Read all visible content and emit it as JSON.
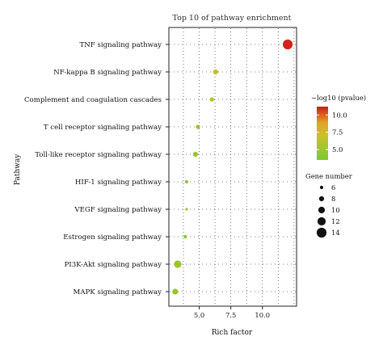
{
  "chart_data": {
    "type": "scatter",
    "title": "Top 10 of pathway enrichment",
    "xlabel": "Rich factor",
    "ylabel": "Pathway",
    "xlim": [
      2.6,
      12.7
    ],
    "xticks": [
      5.0,
      7.5,
      10.0
    ],
    "xtick_labels": [
      "5.0",
      "7.5",
      "10.0"
    ],
    "grid": true,
    "categories": [
      "TNF signaling pathway",
      "NF-kappa B signaling pathway",
      "Complement and coagulation cascades",
      "T cell receptor signaling pathway",
      "Toll-like receptor signaling pathway",
      "HIF-1 signaling pathway",
      "VEGF signaling pathway",
      "Estrogen signaling pathway",
      "PI3K-Akt signaling pathway",
      "MAPK signaling pathway"
    ],
    "points": [
      {
        "pathway": "TNF signaling pathway",
        "rich_factor": 12.0,
        "neg_log10_pvalue": 11.0,
        "gene_number": 14
      },
      {
        "pathway": "NF-kappa B signaling pathway",
        "rich_factor": 6.3,
        "neg_log10_pvalue": 6.3,
        "gene_number": 8
      },
      {
        "pathway": "Complement and coagulation cascades",
        "rich_factor": 6.0,
        "neg_log10_pvalue": 5.8,
        "gene_number": 7
      },
      {
        "pathway": "T cell receptor signaling pathway",
        "rich_factor": 4.9,
        "neg_log10_pvalue": 5.0,
        "gene_number": 7
      },
      {
        "pathway": "Toll-like receptor signaling pathway",
        "rich_factor": 4.7,
        "neg_log10_pvalue": 4.8,
        "gene_number": 8
      },
      {
        "pathway": "HIF-1 signaling pathway",
        "rich_factor": 4.0,
        "neg_log10_pvalue": 4.3,
        "gene_number": 6
      },
      {
        "pathway": "VEGF signaling pathway",
        "rich_factor": 4.0,
        "neg_log10_pvalue": 4.1,
        "gene_number": 5
      },
      {
        "pathway": "Estrogen signaling pathway",
        "rich_factor": 3.9,
        "neg_log10_pvalue": 4.2,
        "gene_number": 6
      },
      {
        "pathway": "PI3K-Akt signaling pathway",
        "rich_factor": 3.3,
        "neg_log10_pvalue": 4.9,
        "gene_number": 11
      },
      {
        "pathway": "MAPK signaling pathway",
        "rich_factor": 3.1,
        "neg_log10_pvalue": 4.6,
        "gene_number": 9
      }
    ],
    "color_legend": {
      "title": "−log10 (pvalue)",
      "range": [
        3.5,
        11.2
      ],
      "ticks": [
        5.0,
        7.5,
        10.0
      ],
      "tick_labels": [
        "5.0",
        "7.5",
        "10.0"
      ],
      "colors": {
        "low": "#7dc832",
        "mid": "#e0a424",
        "high": "#d21818"
      }
    },
    "size_legend": {
      "title": "Gene number",
      "values": [
        6,
        8,
        10,
        12,
        14
      ],
      "labels": [
        "6",
        "8",
        "10",
        "12",
        "14"
      ]
    }
  }
}
